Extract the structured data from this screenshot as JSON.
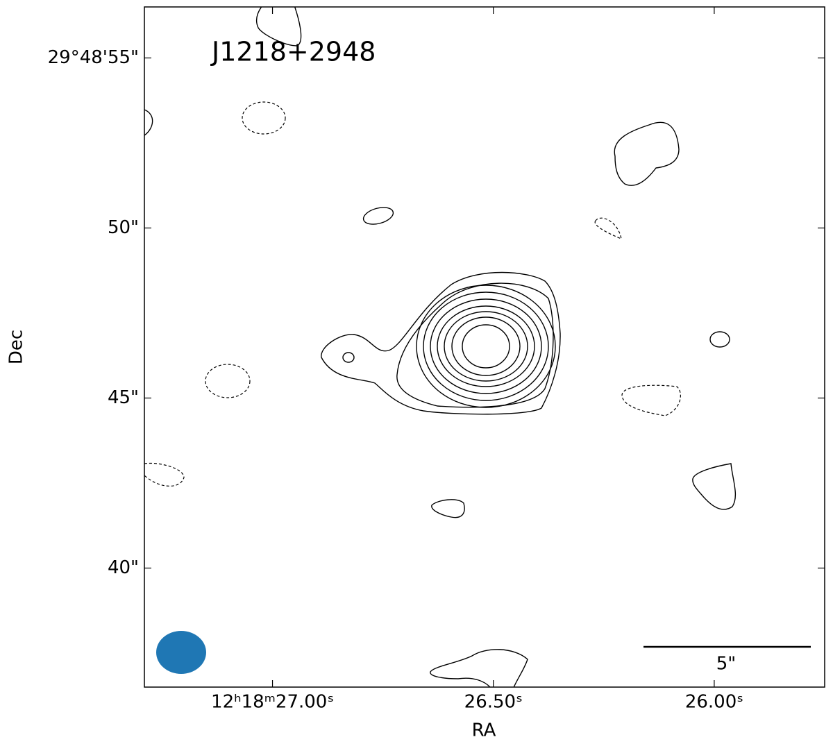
{
  "chart_data": {
    "type": "contour",
    "title": "J1218+2948",
    "xlabel": "RA",
    "ylabel": "Dec",
    "xlim": [
      27.29,
      25.75
    ],
    "ylim": [
      36.5,
      56.5
    ],
    "xticks": [
      {
        "value": 27.0,
        "label": "12ʰ18ᵐ27.00ˢ"
      },
      {
        "value": 26.5,
        "label": "26.50ˢ"
      },
      {
        "value": 26.0,
        "label": "26.00ˢ"
      }
    ],
    "yticks": [
      {
        "value": 55,
        "label": "29°48'55\""
      },
      {
        "value": 50,
        "label": "50\""
      },
      {
        "value": 45,
        "label": "45\""
      },
      {
        "value": 40,
        "label": "40\""
      }
    ],
    "scale_bar_label": "5\"",
    "beam_color": "#1f77b4"
  }
}
